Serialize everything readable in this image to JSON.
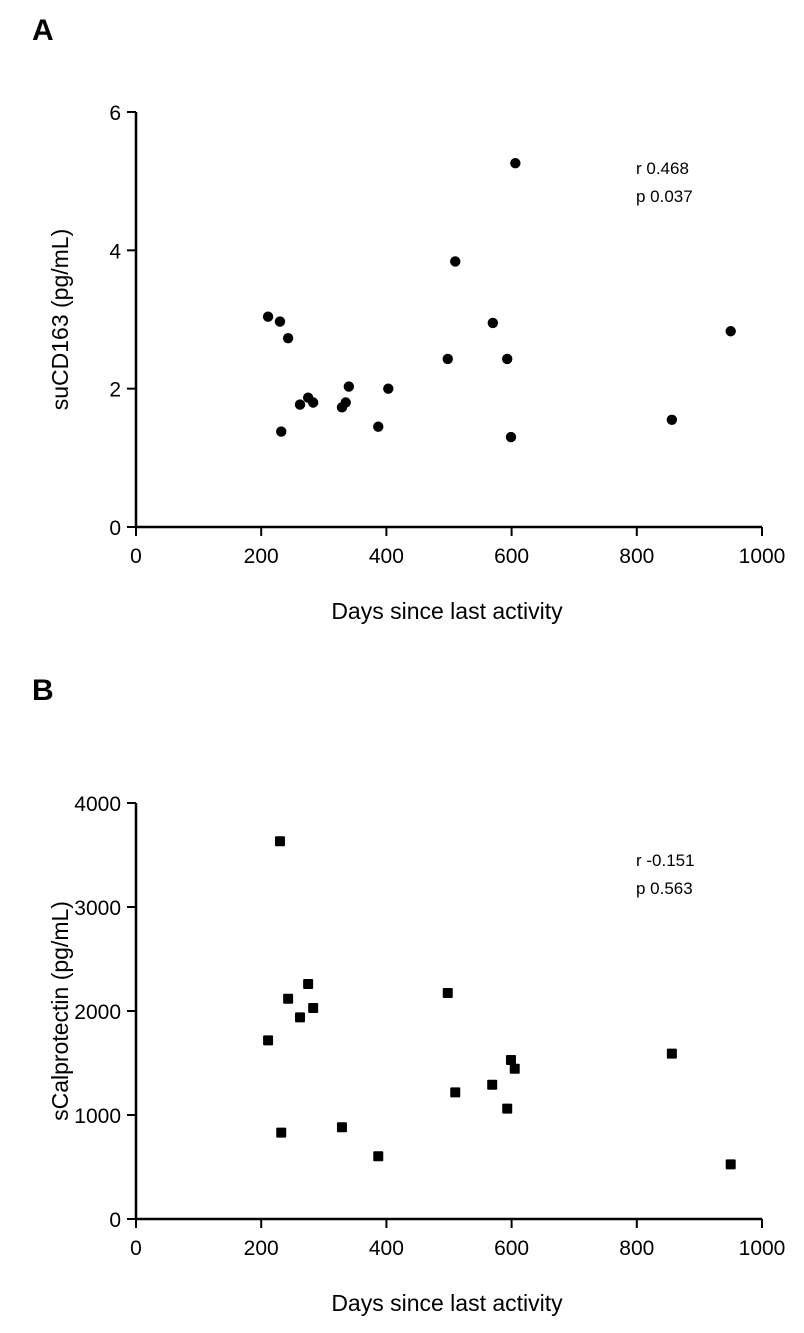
{
  "chart_data": [
    {
      "type": "scatter",
      "panel_label": "A",
      "xlabel": "Days since last activity",
      "ylabel": "suCD163 (pg/mL)",
      "xlim": [
        0,
        1000
      ],
      "ylim": [
        0,
        6
      ],
      "xticks": [
        "0",
        "200",
        "400",
        "600",
        "800",
        "1000"
      ],
      "yticks": [
        "0",
        "2",
        "4",
        "6"
      ],
      "marker": "circle",
      "grid": false,
      "annotation": [
        "r 0.468",
        "p 0.037"
      ],
      "points": [
        [
          606,
          5.26
        ],
        [
          510,
          3.84
        ],
        [
          211,
          3.04
        ],
        [
          230,
          2.97
        ],
        [
          243,
          2.73
        ],
        [
          570,
          2.95
        ],
        [
          498,
          2.43
        ],
        [
          593,
          2.43
        ],
        [
          340,
          2.03
        ],
        [
          403,
          2.0
        ],
        [
          275,
          1.87
        ],
        [
          283,
          1.8
        ],
        [
          262,
          1.77
        ],
        [
          335,
          1.8
        ],
        [
          329,
          1.73
        ],
        [
          387,
          1.45
        ],
        [
          232,
          1.38
        ],
        [
          599,
          1.3
        ],
        [
          856,
          1.55
        ],
        [
          950,
          2.83
        ]
      ]
    },
    {
      "type": "scatter",
      "panel_label": "B",
      "xlabel": "Days since last activity",
      "ylabel": "sCalprotectin (pg/mL)",
      "xlim": [
        0,
        1000
      ],
      "ylim": [
        0,
        4000
      ],
      "xticks": [
        "0",
        "200",
        "400",
        "600",
        "800",
        "1000"
      ],
      "yticks": [
        "0",
        "1000",
        "2000",
        "3000",
        "4000"
      ],
      "marker": "square",
      "grid": false,
      "annotation": [
        "r -0.151",
        "p 0.563"
      ],
      "points": [
        [
          230,
          3632
        ],
        [
          275,
          2260
        ],
        [
          243,
          2118
        ],
        [
          283,
          2029
        ],
        [
          262,
          1939
        ],
        [
          211,
          1718
        ],
        [
          498,
          2173
        ],
        [
          599,
          1529
        ],
        [
          605,
          1445
        ],
        [
          569,
          1291
        ],
        [
          510,
          1218
        ],
        [
          593,
          1061
        ],
        [
          232,
          830
        ],
        [
          329,
          882
        ],
        [
          387,
          603
        ],
        [
          856,
          1590
        ],
        [
          950,
          525
        ]
      ]
    }
  ]
}
